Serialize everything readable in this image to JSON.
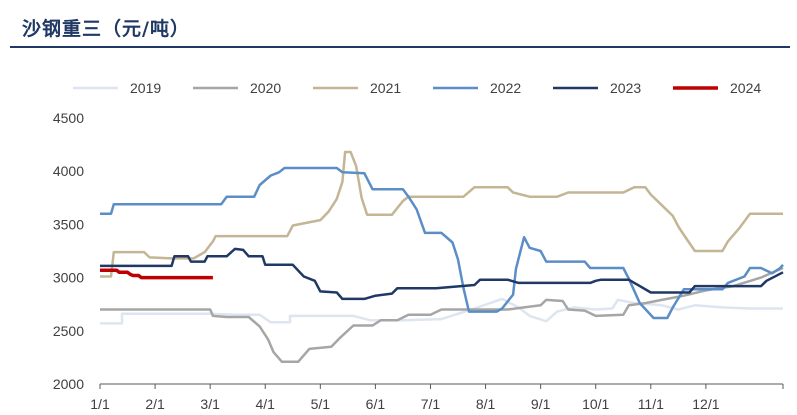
{
  "chart_data": {
    "type": "line",
    "title": "沙钢重三（元/吨）",
    "ylim": [
      2000,
      4500
    ],
    "yticks": [
      2000,
      2500,
      3000,
      3500,
      4000,
      4500
    ],
    "xlim": [
      0,
      12.4
    ],
    "xticks": [
      {
        "label": "1/1",
        "x": 0
      },
      {
        "label": "2/1",
        "x": 1
      },
      {
        "label": "3/1",
        "x": 2
      },
      {
        "label": "4/1",
        "x": 3
      },
      {
        "label": "5/1",
        "x": 4
      },
      {
        "label": "6/1",
        "x": 5
      },
      {
        "label": "7/1",
        "x": 6
      },
      {
        "label": "8/1",
        "x": 7
      },
      {
        "label": "9/1",
        "x": 8
      },
      {
        "label": "10/1",
        "x": 9
      },
      {
        "label": "11/1",
        "x": 10
      },
      {
        "label": "12/1",
        "x": 11
      }
    ],
    "grid": false,
    "legend": "top",
    "series": [
      {
        "name": "2019",
        "color": "#dde6f0",
        "width": 2.5,
        "points": [
          [
            0,
            2570
          ],
          [
            0.4,
            2570
          ],
          [
            0.4,
            2660
          ],
          [
            2,
            2660
          ],
          [
            2.5,
            2650
          ],
          [
            2.9,
            2650
          ],
          [
            3.1,
            2580
          ],
          [
            3.45,
            2580
          ],
          [
            3.45,
            2640
          ],
          [
            4.6,
            2640
          ],
          [
            4.9,
            2600
          ],
          [
            5.5,
            2600
          ],
          [
            6.2,
            2610
          ],
          [
            6.8,
            2710
          ],
          [
            7.3,
            2800
          ],
          [
            7.6,
            2720
          ],
          [
            7.8,
            2640
          ],
          [
            8.1,
            2590
          ],
          [
            8.3,
            2680
          ],
          [
            8.6,
            2720
          ],
          [
            9.0,
            2700
          ],
          [
            9.3,
            2710
          ],
          [
            9.4,
            2790
          ],
          [
            9.7,
            2760
          ],
          [
            10.2,
            2740
          ],
          [
            10.5,
            2700
          ],
          [
            10.8,
            2740
          ],
          [
            11.3,
            2720
          ],
          [
            11.8,
            2710
          ],
          [
            12.4,
            2710
          ]
        ]
      },
      {
        "name": "2020",
        "color": "#a6a6a6",
        "width": 2.5,
        "points": [
          [
            0,
            2700
          ],
          [
            2,
            2700
          ],
          [
            2.05,
            2640
          ],
          [
            2.3,
            2630
          ],
          [
            2.7,
            2630
          ],
          [
            2.9,
            2540
          ],
          [
            3.05,
            2420
          ],
          [
            3.15,
            2300
          ],
          [
            3.3,
            2210
          ],
          [
            3.6,
            2210
          ],
          [
            3.8,
            2330
          ],
          [
            4.2,
            2350
          ],
          [
            4.35,
            2430
          ],
          [
            4.6,
            2550
          ],
          [
            4.95,
            2550
          ],
          [
            5.1,
            2600
          ],
          [
            5.4,
            2600
          ],
          [
            5.6,
            2650
          ],
          [
            6.0,
            2650
          ],
          [
            6.2,
            2700
          ],
          [
            6.6,
            2700
          ],
          [
            6.7,
            2700
          ],
          [
            7.4,
            2700
          ],
          [
            7.7,
            2720
          ],
          [
            8.0,
            2740
          ],
          [
            8.1,
            2790
          ],
          [
            8.4,
            2780
          ],
          [
            8.5,
            2700
          ],
          [
            8.8,
            2690
          ],
          [
            9.0,
            2640
          ],
          [
            9.5,
            2650
          ],
          [
            9.6,
            2740
          ],
          [
            9.9,
            2760
          ],
          [
            10.2,
            2790
          ],
          [
            10.6,
            2830
          ],
          [
            11.0,
            2880
          ],
          [
            11.5,
            2920
          ],
          [
            12.0,
            3000
          ],
          [
            12.4,
            3090
          ]
        ]
      },
      {
        "name": "2021",
        "color": "#c4b594",
        "width": 2.5,
        "points": [
          [
            0,
            3010
          ],
          [
            0.2,
            3010
          ],
          [
            0.25,
            3240
          ],
          [
            0.8,
            3240
          ],
          [
            0.9,
            3190
          ],
          [
            1.3,
            3180
          ],
          [
            1.7,
            3180
          ],
          [
            1.9,
            3240
          ],
          [
            2.05,
            3340
          ],
          [
            2.1,
            3390
          ],
          [
            3.4,
            3390
          ],
          [
            3.5,
            3490
          ],
          [
            4.0,
            3540
          ],
          [
            4.15,
            3620
          ],
          [
            4.3,
            3740
          ],
          [
            4.4,
            3900
          ],
          [
            4.45,
            4180
          ],
          [
            4.55,
            4180
          ],
          [
            4.65,
            4050
          ],
          [
            4.75,
            3750
          ],
          [
            4.85,
            3590
          ],
          [
            5.3,
            3590
          ],
          [
            5.5,
            3720
          ],
          [
            5.6,
            3760
          ],
          [
            6.3,
            3760
          ],
          [
            6.6,
            3760
          ],
          [
            6.8,
            3850
          ],
          [
            7.4,
            3850
          ],
          [
            7.5,
            3800
          ],
          [
            7.8,
            3760
          ],
          [
            8.3,
            3760
          ],
          [
            8.5,
            3800
          ],
          [
            9.5,
            3800
          ],
          [
            9.7,
            3850
          ],
          [
            9.9,
            3850
          ],
          [
            10.0,
            3780
          ],
          [
            10.2,
            3680
          ],
          [
            10.4,
            3580
          ],
          [
            10.5,
            3480
          ],
          [
            10.6,
            3400
          ],
          [
            10.8,
            3250
          ],
          [
            11.3,
            3250
          ],
          [
            11.4,
            3340
          ],
          [
            11.6,
            3460
          ],
          [
            11.8,
            3600
          ],
          [
            12.4,
            3600
          ]
        ]
      },
      {
        "name": "2022",
        "color": "#5b8ec6",
        "width": 2.5,
        "points": [
          [
            0,
            3600
          ],
          [
            0.2,
            3600
          ],
          [
            0.25,
            3690
          ],
          [
            2.2,
            3690
          ],
          [
            2.3,
            3760
          ],
          [
            2.8,
            3760
          ],
          [
            2.9,
            3870
          ],
          [
            3.1,
            3960
          ],
          [
            3.25,
            3990
          ],
          [
            3.35,
            4030
          ],
          [
            4.3,
            4030
          ],
          [
            4.4,
            3990
          ],
          [
            4.8,
            3980
          ],
          [
            4.95,
            3830
          ],
          [
            5.5,
            3830
          ],
          [
            5.6,
            3760
          ],
          [
            5.75,
            3640
          ],
          [
            5.9,
            3420
          ],
          [
            6.2,
            3420
          ],
          [
            6.4,
            3330
          ],
          [
            6.5,
            3170
          ],
          [
            6.6,
            2900
          ],
          [
            6.7,
            2680
          ],
          [
            7.2,
            2680
          ],
          [
            7.3,
            2710
          ],
          [
            7.5,
            2840
          ],
          [
            7.55,
            3080
          ],
          [
            7.6,
            3180
          ],
          [
            7.7,
            3380
          ],
          [
            7.8,
            3280
          ],
          [
            8.0,
            3250
          ],
          [
            8.1,
            3150
          ],
          [
            8.8,
            3150
          ],
          [
            8.9,
            3090
          ],
          [
            9.5,
            3090
          ],
          [
            9.6,
            2990
          ],
          [
            9.8,
            2760
          ],
          [
            10.05,
            2620
          ],
          [
            10.3,
            2620
          ],
          [
            10.4,
            2720
          ],
          [
            10.6,
            2890
          ],
          [
            11.3,
            2890
          ],
          [
            11.4,
            2950
          ],
          [
            11.7,
            3010
          ],
          [
            11.8,
            3090
          ],
          [
            12.0,
            3090
          ],
          [
            12.2,
            3040
          ],
          [
            12.35,
            3090
          ],
          [
            12.4,
            3120
          ]
        ]
      },
      {
        "name": "2023",
        "color": "#203864",
        "width": 2.5,
        "points": [
          [
            0,
            3110
          ],
          [
            1.3,
            3110
          ],
          [
            1.35,
            3200
          ],
          [
            1.6,
            3200
          ],
          [
            1.65,
            3150
          ],
          [
            1.9,
            3150
          ],
          [
            1.95,
            3200
          ],
          [
            2.3,
            3200
          ],
          [
            2.45,
            3270
          ],
          [
            2.6,
            3260
          ],
          [
            2.7,
            3200
          ],
          [
            2.95,
            3200
          ],
          [
            3.0,
            3120
          ],
          [
            3.5,
            3120
          ],
          [
            3.7,
            3010
          ],
          [
            3.9,
            2970
          ],
          [
            4.0,
            2870
          ],
          [
            4.3,
            2860
          ],
          [
            4.4,
            2800
          ],
          [
            4.8,
            2800
          ],
          [
            5.0,
            2830
          ],
          [
            5.3,
            2850
          ],
          [
            5.4,
            2900
          ],
          [
            6.1,
            2900
          ],
          [
            6.8,
            2930
          ],
          [
            6.9,
            2980
          ],
          [
            7.4,
            2980
          ],
          [
            7.6,
            2950
          ],
          [
            8.9,
            2950
          ],
          [
            9.0,
            2970
          ],
          [
            9.1,
            2980
          ],
          [
            9.6,
            2980
          ],
          [
            9.8,
            2920
          ],
          [
            10.0,
            2860
          ],
          [
            10.7,
            2860
          ],
          [
            10.8,
            2920
          ],
          [
            12.0,
            2920
          ],
          [
            12.1,
            2970
          ],
          [
            12.4,
            3050
          ]
        ]
      },
      {
        "name": "2024",
        "color": "#c00000",
        "width": 3.5,
        "points": [
          [
            0,
            3070
          ],
          [
            0.3,
            3070
          ],
          [
            0.35,
            3050
          ],
          [
            0.5,
            3050
          ],
          [
            0.55,
            3030
          ],
          [
            0.6,
            3020
          ],
          [
            0.7,
            3020
          ],
          [
            0.75,
            3000
          ],
          [
            2.05,
            3000
          ]
        ]
      }
    ]
  }
}
